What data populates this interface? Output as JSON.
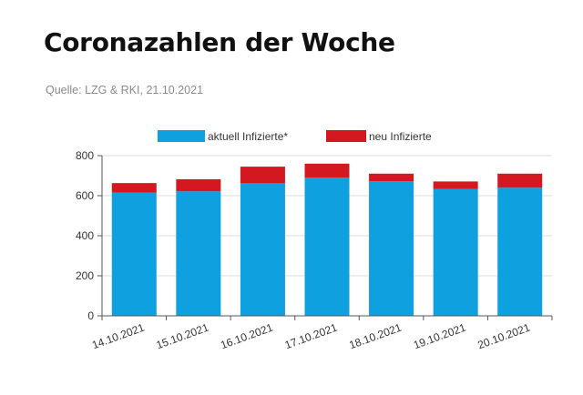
{
  "header": {
    "title": "Coronazahlen der Woche",
    "source": "Quelle: LZG & RKI, 21.10.2021"
  },
  "colors": {
    "active": "#0ea0df",
    "new": "#d4181f",
    "axis": "#555555",
    "grid": "#dddddd",
    "text": "#333333"
  },
  "chart_data": {
    "type": "bar",
    "stacked": true,
    "categories": [
      "14.10.2021",
      "15.10.2021",
      "16.10.2021",
      "17.10.2021",
      "18.10.2021",
      "19.10.2021",
      "20.10.2021"
    ],
    "series": [
      {
        "name": "aktuell Infizierte*",
        "color": "#0ea0df",
        "values": [
          615,
          622,
          662,
          690,
          672,
          633,
          640
        ]
      },
      {
        "name": "neu Infizierte",
        "color": "#d4181f",
        "values": [
          48,
          60,
          83,
          70,
          38,
          38,
          70
        ]
      }
    ],
    "ylim": [
      0,
      800
    ],
    "yticks": [
      0,
      200,
      400,
      600,
      800
    ],
    "legend_position": "top"
  }
}
